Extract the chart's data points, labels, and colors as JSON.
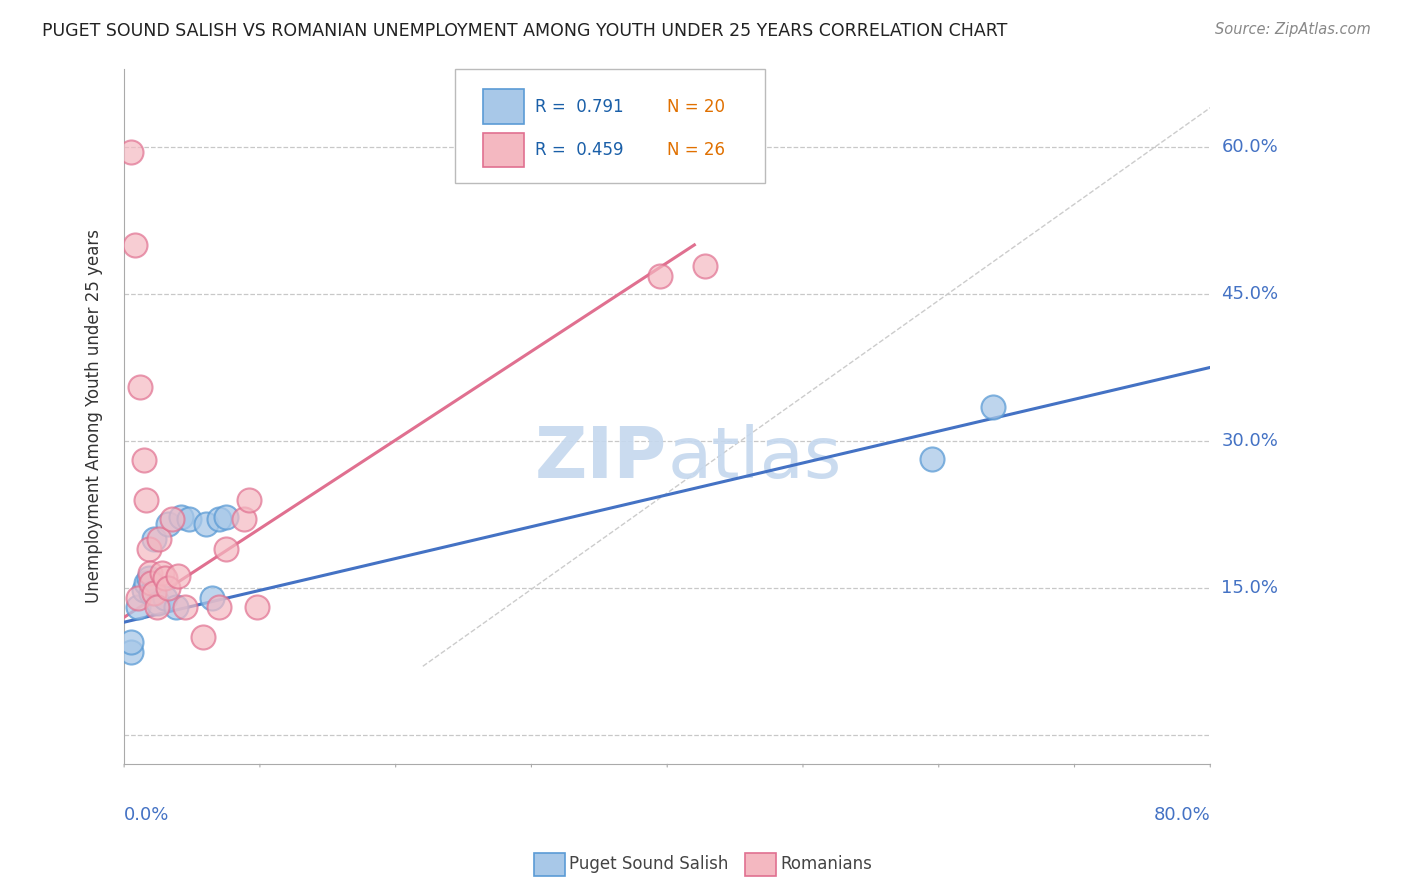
{
  "title": "PUGET SOUND SALISH VS ROMANIAN UNEMPLOYMENT AMONG YOUTH UNDER 25 YEARS CORRELATION CHART",
  "source": "Source: ZipAtlas.com",
  "ylabel": "Unemployment Among Youth under 25 years",
  "xlim": [
    0.0,
    0.8
  ],
  "ylim": [
    -0.03,
    0.68
  ],
  "yticks": [
    0.0,
    0.15,
    0.3,
    0.45,
    0.6
  ],
  "ytick_labels": [
    "",
    "15.0%",
    "30.0%",
    "45.0%",
    "60.0%"
  ],
  "xticks": [
    0.0,
    0.1,
    0.2,
    0.3,
    0.4,
    0.5,
    0.6,
    0.7,
    0.8
  ],
  "watermark": "ZIPatlas",
  "legend_r1": "R =  0.791",
  "legend_n1": "N = 20",
  "legend_r2": "R =  0.459",
  "legend_n2": "N = 26",
  "color_salish": "#a8c8e8",
  "color_salish_edge": "#5b9bd5",
  "color_romanian": "#f4b8c1",
  "color_romanian_edge": "#e07090",
  "color_salish_line": "#4472c4",
  "color_romanian_line": "#e07090",
  "background_color": "#ffffff",
  "grid_color": "#c8c8c8",
  "puget_sound_salish_x": [
    0.005,
    0.005,
    0.01,
    0.015,
    0.016,
    0.018,
    0.02,
    0.022,
    0.025,
    0.03,
    0.032,
    0.038,
    0.042,
    0.048,
    0.06,
    0.065,
    0.07,
    0.075,
    0.595,
    0.64
  ],
  "puget_sound_salish_y": [
    0.085,
    0.095,
    0.13,
    0.148,
    0.155,
    0.16,
    0.145,
    0.2,
    0.135,
    0.14,
    0.215,
    0.13,
    0.222,
    0.22,
    0.215,
    0.14,
    0.22,
    0.222,
    0.282,
    0.335
  ],
  "romanians_x": [
    0.005,
    0.008,
    0.01,
    0.012,
    0.015,
    0.016,
    0.018,
    0.019,
    0.02,
    0.022,
    0.024,
    0.026,
    0.028,
    0.03,
    0.032,
    0.035,
    0.04,
    0.045,
    0.058,
    0.07,
    0.075,
    0.088,
    0.092,
    0.098,
    0.395,
    0.428
  ],
  "romanians_y": [
    0.595,
    0.5,
    0.14,
    0.355,
    0.28,
    0.24,
    0.19,
    0.165,
    0.155,
    0.145,
    0.13,
    0.2,
    0.165,
    0.16,
    0.15,
    0.22,
    0.162,
    0.13,
    0.1,
    0.13,
    0.19,
    0.22,
    0.24,
    0.13,
    0.468,
    0.478
  ],
  "salish_line_x": [
    0.0,
    0.8
  ],
  "salish_line_y": [
    0.115,
    0.375
  ],
  "romanian_line_x": [
    0.0,
    0.42
  ],
  "romanian_line_y": [
    0.12,
    0.5
  ],
  "ref_line_x": [
    0.22,
    0.8
  ],
  "ref_line_y": [
    0.07,
    0.64
  ]
}
